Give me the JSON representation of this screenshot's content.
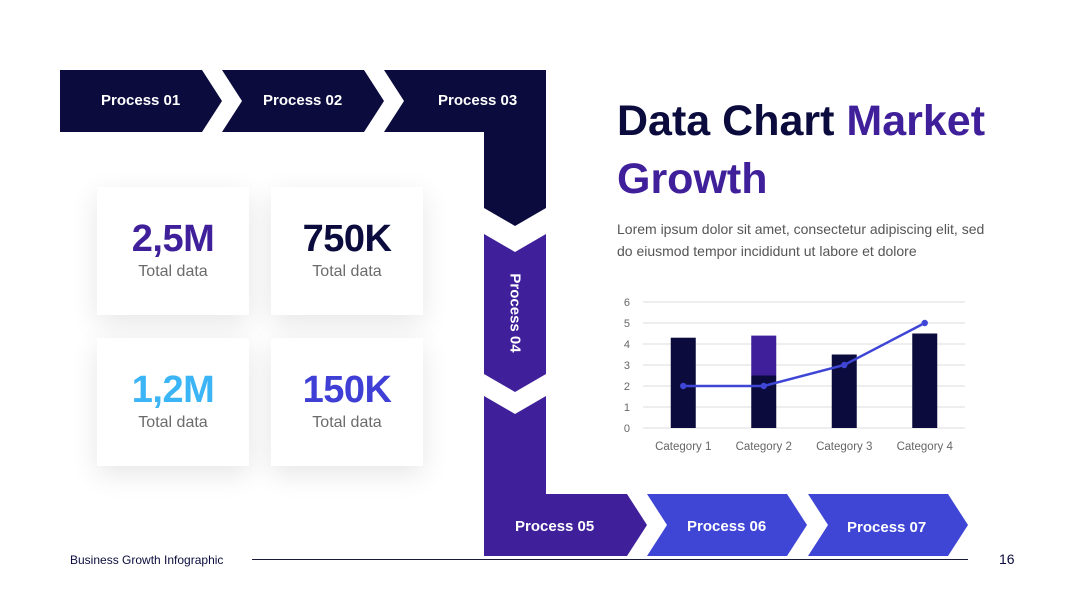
{
  "process_steps": {
    "p01": "Process 01",
    "p02": "Process 02",
    "p03": "Process 03",
    "p04": "Process 04",
    "p05": "Process 05",
    "p06": "Process 06",
    "p07": "Process 07"
  },
  "stats": [
    {
      "value": "2,5M",
      "caption": "Total data",
      "color": "#3f1f9a"
    },
    {
      "value": "750K",
      "caption": "Total data",
      "color": "#0b0c3d"
    },
    {
      "value": "1,2M",
      "caption": "Total data",
      "color": "#3bb5f5"
    },
    {
      "value": "150K",
      "caption": "Total data",
      "color": "#3f3fd6"
    }
  ],
  "title": {
    "part1": "Data Chart ",
    "part2": "Market Growth"
  },
  "description": "Lorem ipsum dolor sit amet, consectetur adipiscing elit, sed do eiusmod tempor incididunt ut labore et dolore",
  "footer": {
    "text": "Business Growth Infographic",
    "page_number": "16"
  },
  "colors": {
    "navy": "#0b0c3d",
    "purple": "#3f1f9a",
    "blue": "#3f46d6",
    "cyan": "#3bb5f5"
  },
  "chart_data": {
    "type": "bar",
    "categories": [
      "Category 1",
      "Category 2",
      "Category 3",
      "Category 4"
    ],
    "series": [
      {
        "type": "bar",
        "values": [
          4.3,
          2.5,
          3.5,
          4.5
        ],
        "color": "#0b0c3d"
      },
      {
        "type": "bar-stacked",
        "values": [
          0,
          1.9,
          0,
          0
        ],
        "color": "#3f1f9a"
      },
      {
        "type": "line",
        "values": [
          2,
          2,
          3,
          5
        ],
        "color": "#3f46d6"
      }
    ],
    "ylim": [
      0,
      6
    ],
    "yticks": [
      "0",
      "1",
      "2",
      "3",
      "4",
      "5",
      "6"
    ],
    "grid": true
  }
}
